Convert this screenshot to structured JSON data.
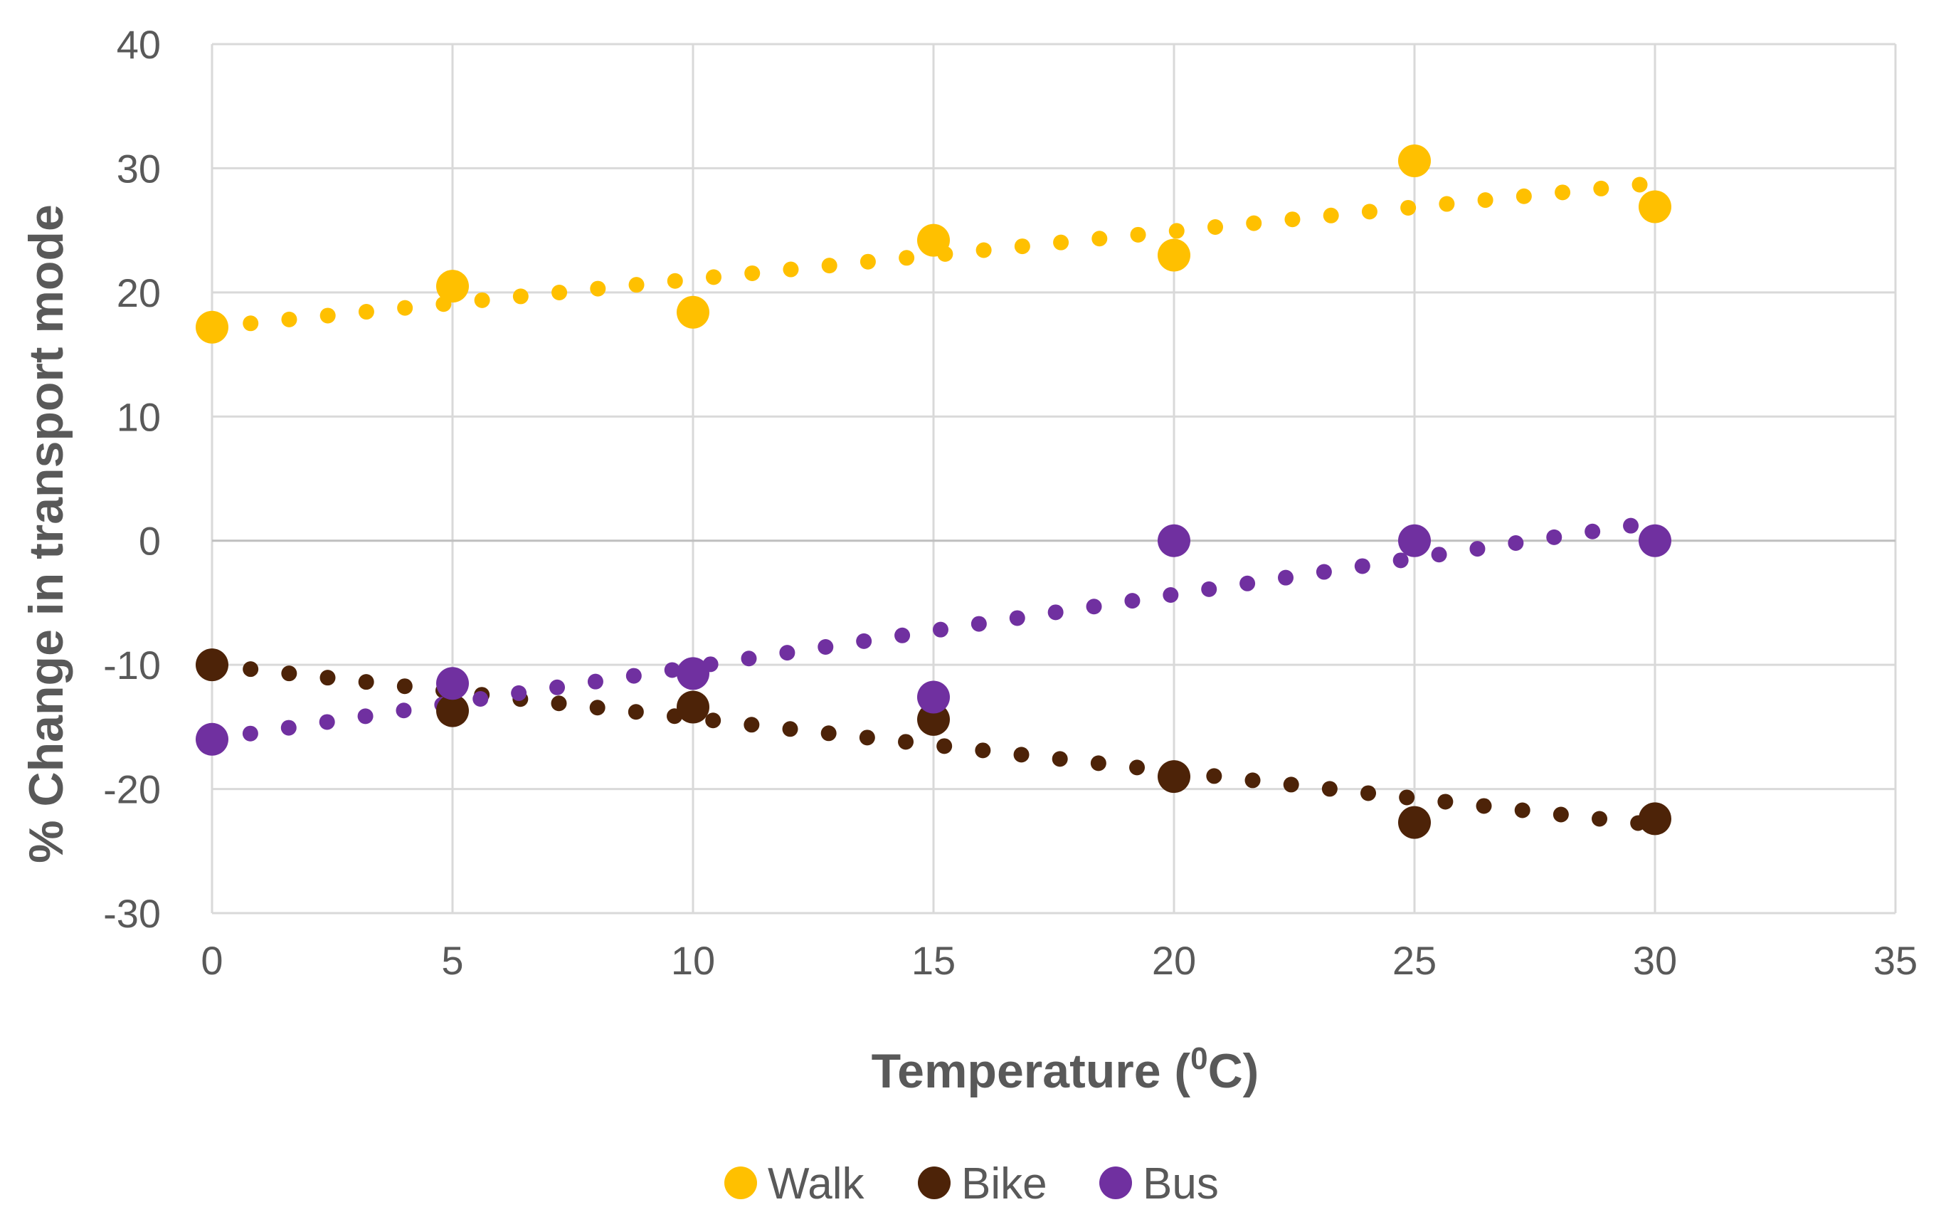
{
  "chart_data": {
    "type": "scatter",
    "xlabel": "Temperature (",
    "xlabel_sup": "0",
    "xlabel_suffix": "C)",
    "ylabel": "% Change in transport mode",
    "xlim": [
      0,
      35
    ],
    "ylim": [
      -30,
      40
    ],
    "x_ticks": [
      "0",
      "5",
      "10",
      "15",
      "20",
      "25",
      "30",
      "35"
    ],
    "y_ticks": [
      "-30",
      "-20",
      "-10",
      "0",
      "10",
      "20",
      "30",
      "40"
    ],
    "grid": true,
    "legend_position": "bottom",
    "series": [
      {
        "name": "Walk",
        "color": "#FFC000",
        "x": [
          0,
          5,
          10,
          15,
          20,
          25,
          30
        ],
        "y": [
          17.2,
          20.5,
          18.4,
          24.2,
          23.0,
          30.6,
          26.9
        ],
        "trendline": {
          "x": [
            0,
            30
          ],
          "y": [
            17.2,
            28.8
          ]
        }
      },
      {
        "name": "Bike",
        "color": "#4D2308",
        "x": [
          0,
          5,
          10,
          15,
          20,
          25,
          30
        ],
        "y": [
          -10.0,
          -13.7,
          -13.4,
          -14.4,
          -19.0,
          -22.7,
          -22.4
        ],
        "trendline": {
          "x": [
            0,
            30
          ],
          "y": [
            -10.0,
            -22.9
          ]
        }
      },
      {
        "name": "Bus",
        "color": "#7030A0",
        "x": [
          0,
          5,
          10,
          15,
          20,
          25,
          30
        ],
        "y": [
          -16.0,
          -11.5,
          -10.7,
          -12.6,
          0.0,
          0.0,
          0.0
        ],
        "trendline": {
          "x": [
            0,
            30
          ],
          "y": [
            -16.0,
            1.5
          ]
        }
      }
    ]
  }
}
